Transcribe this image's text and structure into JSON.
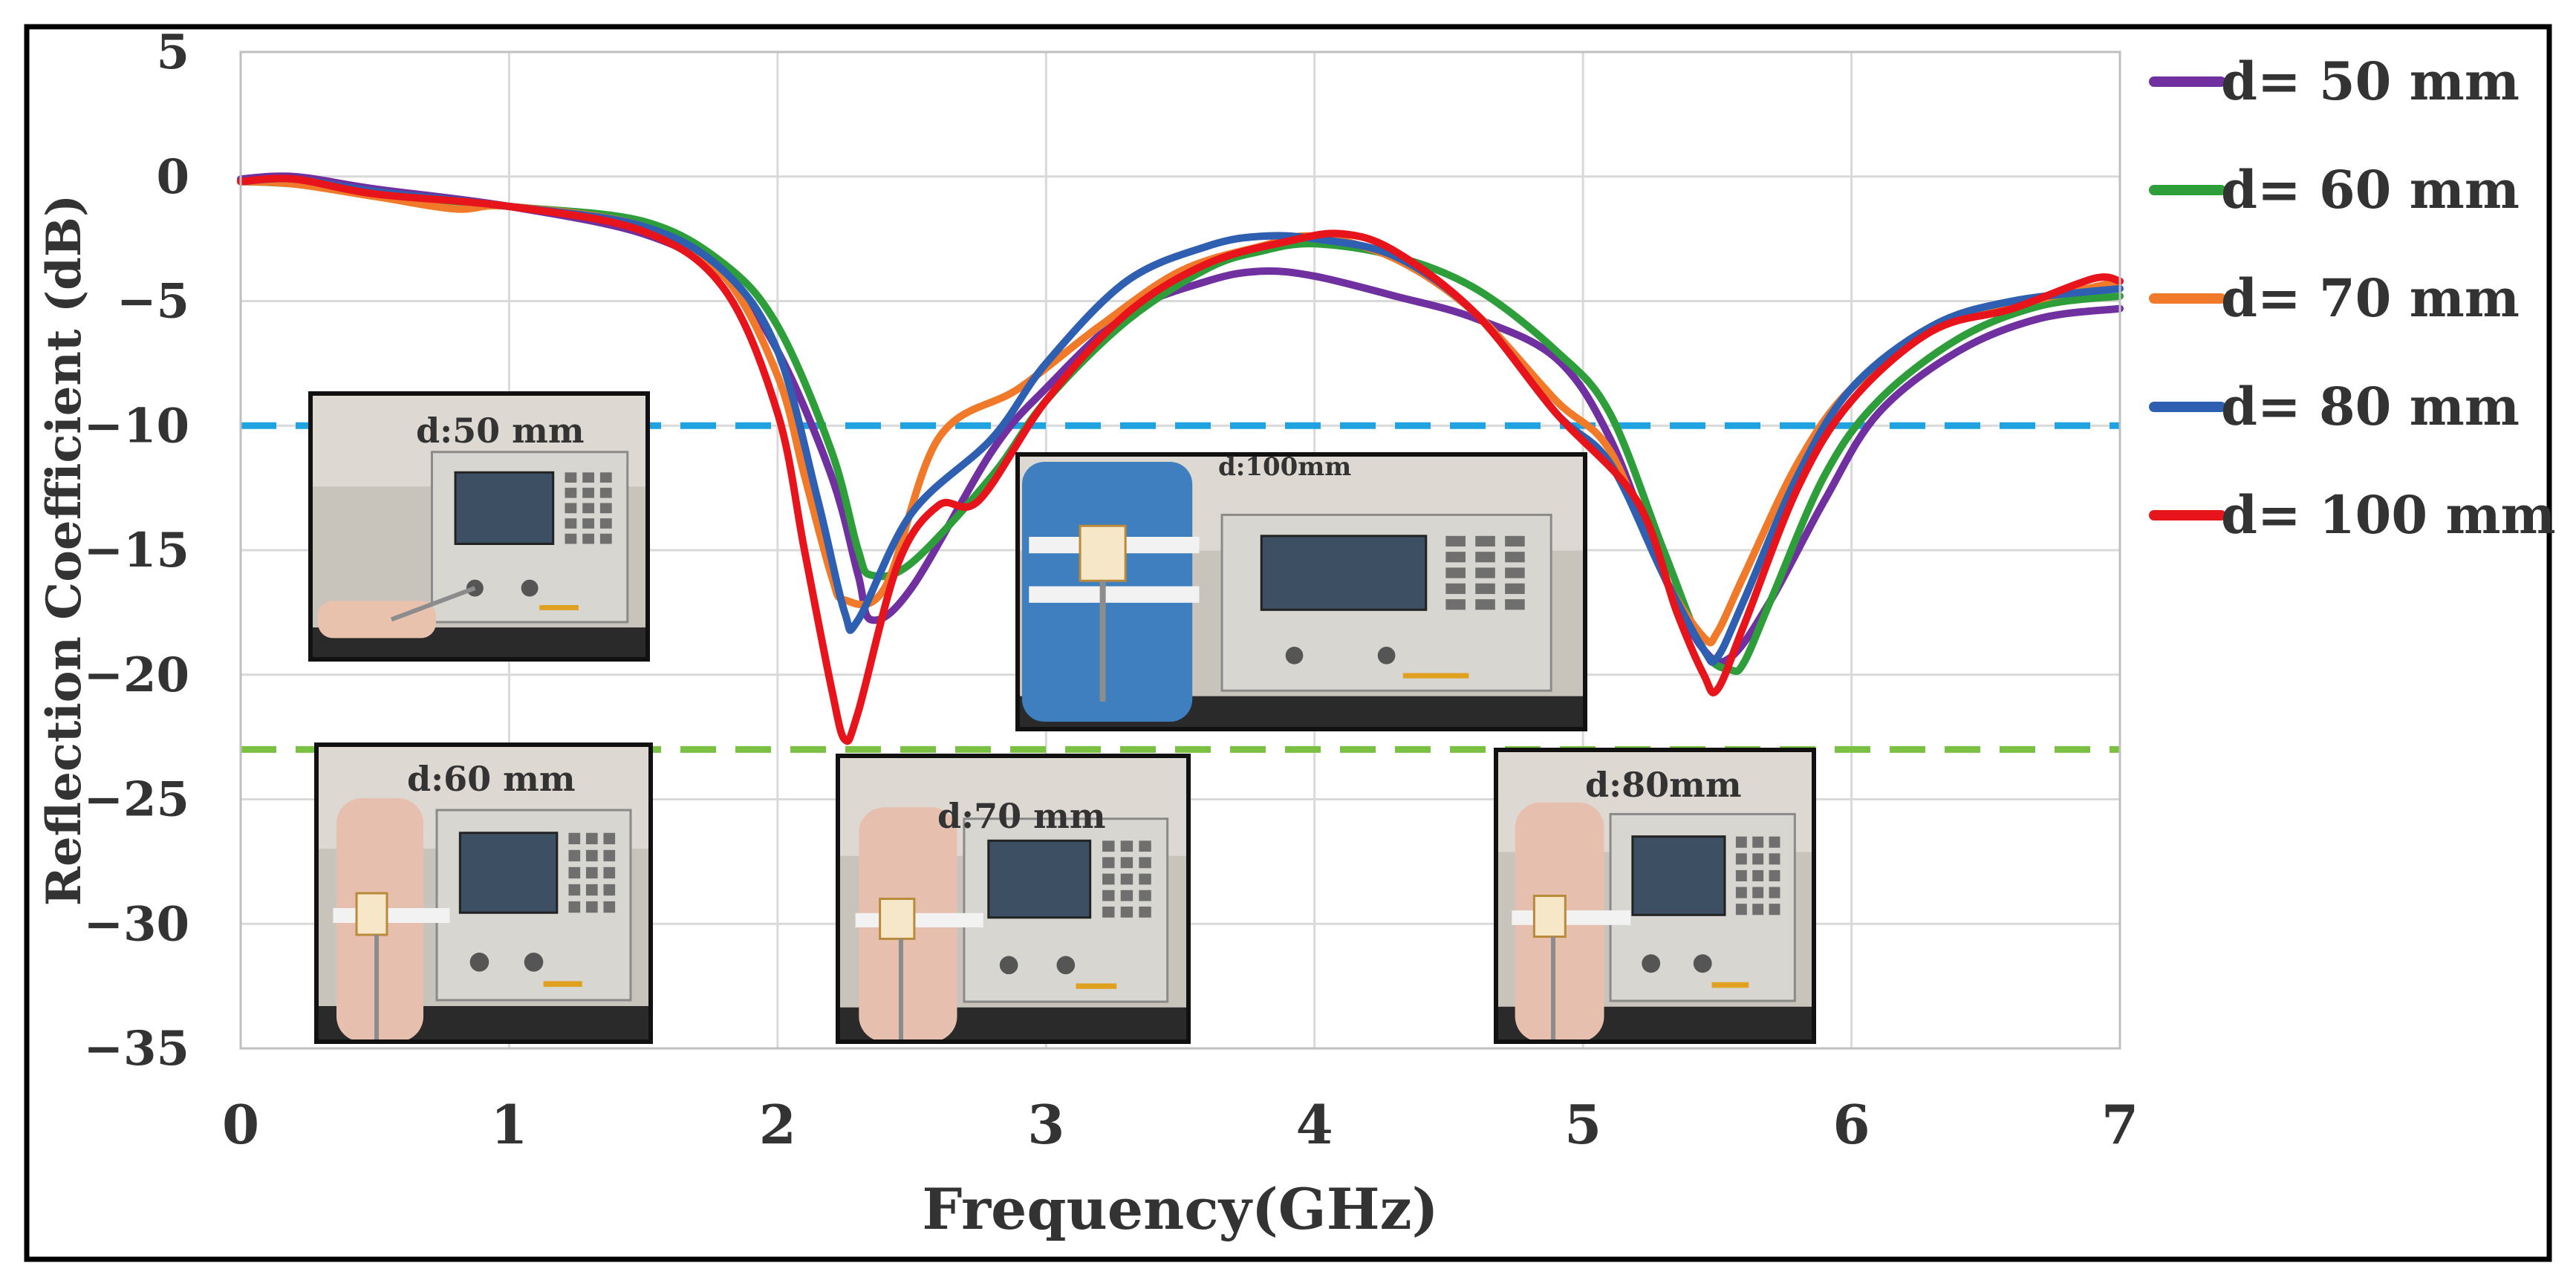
{
  "chart_data": {
    "type": "line",
    "xlabel": "Frequency(GHz)",
    "ylabel": "Reflection Coefficient (dB)",
    "xlim": [
      0,
      7
    ],
    "ylim": [
      -35,
      5
    ],
    "x_ticks": [
      0,
      1,
      2,
      3,
      4,
      5,
      6,
      7
    ],
    "y_ticks": [
      5,
      0,
      -5,
      -10,
      -15,
      -20,
      -25,
      -30,
      -35
    ],
    "y_tick_labels": [
      "5",
      "0",
      "−5",
      "−10",
      "−15",
      "−20",
      "−25",
      "−30",
      "−35"
    ],
    "grid": true,
    "legend_position": "right",
    "reference_lines": [
      {
        "y": -10,
        "color": "#1ea2e0",
        "style": "dashed"
      },
      {
        "y": -23,
        "color": "#7ac143",
        "style": "dashed"
      }
    ],
    "series": [
      {
        "name": "d= 50 mm",
        "color": "#7030a0",
        "x": [
          0,
          0.2,
          0.5,
          1.0,
          1.5,
          1.8,
          2.0,
          2.2,
          2.3,
          2.35,
          2.5,
          2.8,
          3.0,
          3.3,
          3.6,
          3.8,
          4.0,
          4.3,
          4.6,
          4.9,
          5.1,
          5.3,
          5.45,
          5.55,
          5.7,
          5.9,
          6.1,
          6.4,
          6.7,
          7.0
        ],
        "y": [
          -0.1,
          0,
          -0.5,
          -1.2,
          -2.3,
          -4,
          -7,
          -12,
          -16,
          -17.8,
          -16.5,
          -11,
          -8.5,
          -5.5,
          -4.2,
          -3.8,
          -4,
          -4.8,
          -5.7,
          -7.3,
          -10.5,
          -16,
          -19,
          -19.3,
          -17,
          -13,
          -9.5,
          -7,
          -5.7,
          -5.3
        ]
      },
      {
        "name": "d= 60 mm",
        "color": "#2e9e3a",
        "x": [
          0,
          0.2,
          0.5,
          1.0,
          1.5,
          1.8,
          2.0,
          2.2,
          2.3,
          2.35,
          2.5,
          2.8,
          3.0,
          3.3,
          3.6,
          3.8,
          4.0,
          4.3,
          4.6,
          4.9,
          5.1,
          5.3,
          5.45,
          5.55,
          5.6,
          5.7,
          5.9,
          6.1,
          6.4,
          6.7,
          7.0
        ],
        "y": [
          -0.2,
          -0.3,
          -0.7,
          -1.2,
          -1.8,
          -3.5,
          -6,
          -11,
          -15,
          -16,
          -15.5,
          -12,
          -9,
          -5.8,
          -3.7,
          -3,
          -2.7,
          -3.2,
          -4.5,
          -7,
          -9.5,
          -15,
          -19,
          -19.8,
          -19.5,
          -17,
          -12,
          -9,
          -6.5,
          -5.2,
          -4.8
        ]
      },
      {
        "name": "d= 70 mm",
        "color": "#f07a2a",
        "x": [
          0,
          0.2,
          0.5,
          0.8,
          1.0,
          1.5,
          1.8,
          2.0,
          2.1,
          2.2,
          2.25,
          2.4,
          2.6,
          2.9,
          3.2,
          3.5,
          3.8,
          4.0,
          4.3,
          4.6,
          4.9,
          5.1,
          5.3,
          5.45,
          5.5,
          5.6,
          5.8,
          6.0,
          6.3,
          6.6,
          7.0
        ],
        "y": [
          -0.2,
          -0.3,
          -0.8,
          -1.3,
          -1.2,
          -2,
          -4,
          -8,
          -12,
          -16,
          -17,
          -16.5,
          -10.5,
          -8.5,
          -6,
          -3.8,
          -2.8,
          -2.4,
          -3.3,
          -5.5,
          -9,
          -11,
          -16,
          -18.5,
          -18.3,
          -16,
          -11.5,
          -8.5,
          -6.2,
          -5.2,
          -4.2
        ]
      },
      {
        "name": "d= 80 mm",
        "color": "#2e5fb0",
        "x": [
          0,
          0.2,
          0.5,
          1.0,
          1.5,
          1.8,
          2.0,
          2.15,
          2.25,
          2.3,
          2.5,
          2.8,
          3.0,
          3.3,
          3.6,
          3.8,
          4.0,
          4.3,
          4.6,
          4.9,
          5.1,
          5.3,
          5.45,
          5.5,
          5.6,
          5.8,
          6.0,
          6.3,
          6.6,
          7.0
        ],
        "y": [
          -0.2,
          -0.1,
          -0.6,
          -1.2,
          -2,
          -3.8,
          -7,
          -13,
          -17.5,
          -17.8,
          -13.5,
          -10.5,
          -7.5,
          -4.2,
          -2.8,
          -2.4,
          -2.5,
          -3.2,
          -5.5,
          -9.5,
          -11.5,
          -16,
          -19,
          -19.3,
          -17,
          -12,
          -8.5,
          -6,
          -5,
          -4.5
        ]
      },
      {
        "name": "d= 100 mm",
        "color": "#e8141b",
        "x": [
          0,
          0.2,
          0.5,
          1.0,
          1.5,
          1.8,
          2.0,
          2.1,
          2.2,
          2.25,
          2.3,
          2.45,
          2.6,
          2.75,
          3.0,
          3.3,
          3.6,
          3.9,
          4.1,
          4.3,
          4.6,
          4.9,
          5.2,
          5.35,
          5.45,
          5.5,
          5.6,
          5.8,
          6.0,
          6.3,
          6.6,
          6.9,
          7.0
        ],
        "y": [
          -0.2,
          -0.1,
          -0.7,
          -1.2,
          -2.2,
          -4.5,
          -9.5,
          -15,
          -20.5,
          -22.6,
          -21.5,
          -15.5,
          -13.2,
          -13,
          -9,
          -5.5,
          -3.5,
          -2.6,
          -2.3,
          -3,
          -5.5,
          -9.5,
          -13,
          -17.5,
          -20,
          -20.6,
          -18,
          -12.5,
          -9,
          -6.2,
          -5.3,
          -4.1,
          -4.2
        ]
      }
    ]
  },
  "insets": [
    {
      "label": "d:50 mm"
    },
    {
      "label": "d:100mm"
    },
    {
      "label": "d:60 mm"
    },
    {
      "label": "d:70 mm"
    },
    {
      "label": "d:80mm"
    }
  ]
}
